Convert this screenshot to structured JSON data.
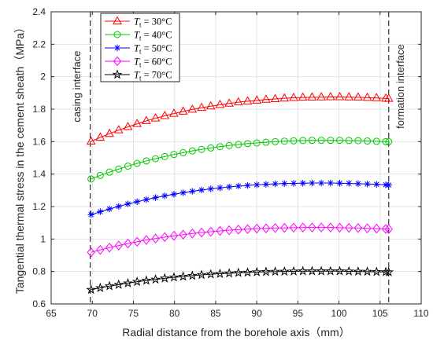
{
  "chart_data": {
    "type": "line",
    "xlabel": "Radial distance from the borehole axis（mm）",
    "ylabel": "Tangential thermal stress in the cement sheath（MPa）",
    "xlim": [
      65,
      110
    ],
    "ylim": [
      0.6,
      2.4
    ],
    "xticks": [
      65,
      70,
      75,
      80,
      85,
      90,
      95,
      100,
      105,
      110
    ],
    "yticks": [
      0.6,
      0.8,
      1,
      1.2,
      1.4,
      1.6,
      1.8,
      2,
      2.2,
      2.4
    ],
    "grid": true,
    "legend_position": "top-left",
    "x": [
      69.85,
      70.97,
      72.09,
      73.21,
      74.33,
      75.45,
      76.57,
      77.69,
      78.81,
      79.93,
      81.05,
      82.17,
      83.29,
      84.41,
      85.53,
      86.65,
      87.77,
      88.89,
      90.01,
      91.13,
      92.25,
      93.37,
      94.49,
      95.61,
      96.73,
      97.85,
      98.97,
      100.09,
      101.21,
      102.33,
      103.45,
      104.57,
      105.69,
      106.05
    ],
    "series": [
      {
        "name": "30°C",
        "color": "#ff0000",
        "marker": "triangle",
        "values": [
          1.601,
          1.626,
          1.649,
          1.671,
          1.691,
          1.71,
          1.728,
          1.744,
          1.759,
          1.773,
          1.786,
          1.798,
          1.809,
          1.818,
          1.827,
          1.835,
          1.843,
          1.849,
          1.854,
          1.859,
          1.863,
          1.867,
          1.87,
          1.872,
          1.873,
          1.874,
          1.875,
          1.875,
          1.874,
          1.873,
          1.871,
          1.869,
          1.866,
          1.865
        ]
      },
      {
        "name": "40°C",
        "color": "#00c800",
        "marker": "circle",
        "values": [
          1.37,
          1.392,
          1.412,
          1.431,
          1.449,
          1.466,
          1.481,
          1.495,
          1.508,
          1.521,
          1.532,
          1.543,
          1.552,
          1.561,
          1.569,
          1.576,
          1.582,
          1.588,
          1.592,
          1.596,
          1.6,
          1.603,
          1.605,
          1.607,
          1.608,
          1.608,
          1.608,
          1.608,
          1.607,
          1.606,
          1.604,
          1.602,
          1.6,
          1.599
        ]
      },
      {
        "name": "50°C",
        "color": "#0000ff",
        "marker": "asterisk",
        "values": [
          1.15,
          1.168,
          1.185,
          1.201,
          1.216,
          1.23,
          1.243,
          1.255,
          1.266,
          1.276,
          1.285,
          1.294,
          1.302,
          1.309,
          1.315,
          1.321,
          1.326,
          1.33,
          1.334,
          1.337,
          1.34,
          1.342,
          1.343,
          1.344,
          1.345,
          1.345,
          1.345,
          1.344,
          1.343,
          1.341,
          1.339,
          1.337,
          1.334,
          1.333
        ]
      },
      {
        "name": "60°C",
        "color": "#ff00ff",
        "marker": "diamond",
        "values": [
          0.918,
          0.933,
          0.947,
          0.96,
          0.972,
          0.983,
          0.994,
          1.003,
          1.012,
          1.02,
          1.027,
          1.034,
          1.04,
          1.045,
          1.05,
          1.054,
          1.058,
          1.061,
          1.064,
          1.066,
          1.068,
          1.069,
          1.07,
          1.071,
          1.071,
          1.071,
          1.071,
          1.07,
          1.069,
          1.068,
          1.066,
          1.064,
          1.062,
          1.061
        ]
      },
      {
        "name": "70°C",
        "color": "#000000",
        "marker": "star",
        "values": [
          0.688,
          0.699,
          0.71,
          0.719,
          0.728,
          0.737,
          0.744,
          0.751,
          0.758,
          0.764,
          0.769,
          0.774,
          0.779,
          0.783,
          0.786,
          0.789,
          0.792,
          0.794,
          0.796,
          0.798,
          0.799,
          0.8,
          0.801,
          0.802,
          0.802,
          0.802,
          0.802,
          0.802,
          0.801,
          0.8,
          0.799,
          0.798,
          0.797,
          0.796
        ]
      }
    ],
    "legend_symbol": "T",
    "legend_subscript": "t",
    "legend_prefix": " = ",
    "annotations": [
      {
        "text": "casing interface",
        "x": 69.75,
        "y_center": 1.94
      },
      {
        "text": "formation interface",
        "x": 106.05,
        "y_center": 1.94
      }
    ]
  }
}
